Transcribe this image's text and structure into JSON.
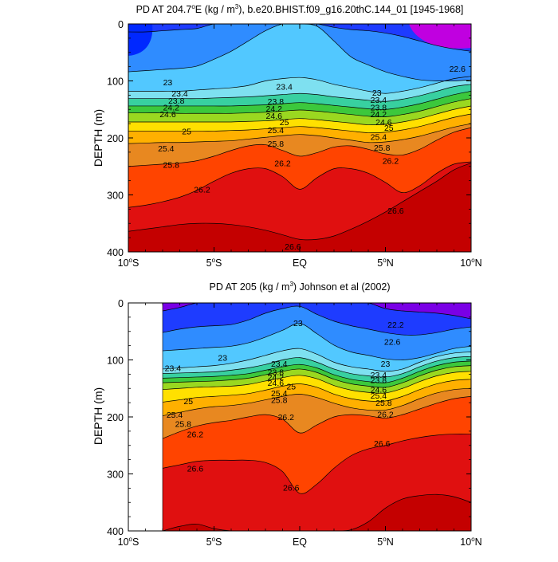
{
  "chart_data": [
    {
      "type": "contour",
      "title": "PD AT 204.7°E (kg / m³), b.e20.BHIST.f09_g16.20thC.144_01 [1945-1968]",
      "title_parts": {
        "pre": "PD AT 204.7",
        "deg": "o",
        "mid": "E (kg / m",
        "cube": "3",
        "post": "), b.e20.BHIST.f09_g16.20thC.144_01 [1945-1968]"
      },
      "xlabel": "",
      "ylabel": "DEPTH (m)",
      "x_range": [
        -10,
        10
      ],
      "y_range": [
        0,
        400
      ],
      "y_inverted": true,
      "x_ticks": [
        {
          "value": -10,
          "num": "10",
          "deg": "o",
          "hem": "S"
        },
        {
          "value": -5,
          "num": "5",
          "deg": "o",
          "hem": "S"
        },
        {
          "value": 0,
          "num": "EQ",
          "deg": "",
          "hem": ""
        },
        {
          "value": 5,
          "num": "5",
          "deg": "o",
          "hem": "N"
        },
        {
          "value": 10,
          "num": "10",
          "deg": "o",
          "hem": "N"
        }
      ],
      "y_ticks": [
        "0",
        "100",
        "200",
        "300",
        "400"
      ],
      "y_tick_values": [
        0,
        100,
        200,
        300,
        400
      ],
      "data_x_range": [
        -10,
        10
      ],
      "isopycnals": [
        {
          "level": 22.6,
          "depth": [
            14,
            14,
            12,
            10,
            8,
            0,
            0,
            0,
            0,
            0,
            0,
            0,
            6,
            10,
            12,
            16,
            22,
            30,
            38,
            44,
            48
          ]
        },
        {
          "level": 23.0,
          "depth": [
            84,
            82,
            80,
            78,
            74,
            62,
            48,
            30,
            12,
            0,
            0,
            4,
            30,
            58,
            72,
            84,
            92,
            98,
            100,
            100,
            98
          ]
        },
        {
          "level": 23.4,
          "depth": [
            118,
            118,
            118,
            118,
            116,
            114,
            112,
            108,
            100,
            96,
            94,
            98,
            106,
            112,
            118,
            122,
            118,
            112,
            104,
            96,
            92
          ]
        },
        {
          "level": 23.8,
          "depth": [
            131,
            131,
            131,
            131,
            131,
            130,
            129,
            128,
            126,
            124,
            122,
            124,
            128,
            131,
            134,
            136,
            132,
            126,
            118,
            110,
            106
          ]
        },
        {
          "level": 24.2,
          "depth": [
            144,
            144,
            144,
            144,
            144,
            144,
            144,
            143,
            142,
            140,
            138,
            140,
            143,
            146,
            149,
            150,
            146,
            140,
            132,
            124,
            118
          ]
        },
        {
          "level": 24.6,
          "depth": [
            156,
            156,
            156,
            157,
            157,
            157,
            157,
            156,
            155,
            153,
            151,
            153,
            156,
            159,
            162,
            163,
            159,
            153,
            145,
            137,
            131
          ]
        },
        {
          "level": 25.0,
          "depth": [
            172,
            172,
            172,
            172,
            172,
            172,
            172,
            171,
            170,
            168,
            166,
            168,
            171,
            174,
            177,
            176,
            172,
            166,
            158,
            150,
            144
          ]
        },
        {
          "level": 25.4,
          "depth": [
            188,
            188,
            188,
            188,
            188,
            188,
            187,
            186,
            184,
            182,
            180,
            182,
            185,
            188,
            191,
            190,
            186,
            180,
            172,
            164,
            158
          ]
        },
        {
          "level": 25.8,
          "depth": [
            210,
            209,
            208,
            208,
            207,
            206,
            205,
            202,
            199,
            196,
            194,
            196,
            200,
            204,
            208,
            207,
            203,
            197,
            189,
            181,
            175
          ]
        },
        {
          "level": 26.2,
          "depth": [
            250,
            248,
            246,
            244,
            240,
            232,
            222,
            214,
            212,
            222,
            232,
            226,
            216,
            214,
            220,
            228,
            230,
            220,
            204,
            190,
            182
          ]
        },
        {
          "level": 26.6,
          "depth": [
            322,
            318,
            312,
            304,
            292,
            276,
            262,
            254,
            254,
            268,
            290,
            270,
            254,
            254,
            262,
            278,
            296,
            284,
            262,
            246,
            242
          ]
        },
        {
          "level": 27.0,
          "depth": [
            364,
            360,
            356,
            352,
            350,
            350,
            352,
            356,
            362,
            370,
            378,
            378,
            372,
            360,
            346,
            330,
            312,
            294,
            276,
            256,
            244
          ]
        }
      ],
      "line_labels": [
        {
          "text": "22.6",
          "x": 9.2,
          "y": 78
        },
        {
          "text": "23",
          "x": -7.7,
          "y": 102
        },
        {
          "text": "23.4",
          "x": -0.9,
          "y": 110
        },
        {
          "text": "23",
          "x": 4.5,
          "y": 120
        },
        {
          "text": "23.4",
          "x": -7.0,
          "y": 122
        },
        {
          "text": "23.4",
          "x": 4.6,
          "y": 133
        },
        {
          "text": "23.8",
          "x": -7.2,
          "y": 134
        },
        {
          "text": "23.8",
          "x": -1.4,
          "y": 136
        },
        {
          "text": "23.8",
          "x": 4.6,
          "y": 146
        },
        {
          "text": "24.2",
          "x": -7.5,
          "y": 146
        },
        {
          "text": "24.2",
          "x": -1.5,
          "y": 148
        },
        {
          "text": "24.2",
          "x": 4.6,
          "y": 158
        },
        {
          "text": "24.6",
          "x": -7.7,
          "y": 158
        },
        {
          "text": "24.6",
          "x": -1.5,
          "y": 161
        },
        {
          "text": "25",
          "x": -0.9,
          "y": 172
        },
        {
          "text": "24.6",
          "x": 4.9,
          "y": 172
        },
        {
          "text": "25",
          "x": 5.2,
          "y": 182
        },
        {
          "text": "25",
          "x": -6.6,
          "y": 188
        },
        {
          "text": "25.4",
          "x": -1.4,
          "y": 186
        },
        {
          "text": "25.4",
          "x": 4.6,
          "y": 198
        },
        {
          "text": "25.8",
          "x": -1.4,
          "y": 210
        },
        {
          "text": "25.4",
          "x": -7.8,
          "y": 218
        },
        {
          "text": "25.8",
          "x": 4.8,
          "y": 217
        },
        {
          "text": "26.2",
          "x": -1.0,
          "y": 244
        },
        {
          "text": "25.8",
          "x": -7.5,
          "y": 247
        },
        {
          "text": "26.2",
          "x": 5.3,
          "y": 240
        },
        {
          "text": "26.2",
          "x": -5.7,
          "y": 290
        },
        {
          "text": "26.6",
          "x": 5.6,
          "y": 327
        },
        {
          "text": "26.6",
          "x": -0.4,
          "y": 390
        }
      ]
    },
    {
      "type": "contour",
      "title": "PD AT 205 (kg / m³) Johnson et al (2002)",
      "title_parts": {
        "pre": "PD AT 205 (kg / m",
        "cube": "3",
        "post": ") Johnson et al (2002)"
      },
      "xlabel": "",
      "ylabel": "DEPTH (m)",
      "x_range": [
        -10,
        10
      ],
      "y_range": [
        0,
        400
      ],
      "y_inverted": true,
      "x_ticks": [
        {
          "value": -10,
          "num": "10",
          "deg": "o",
          "hem": "S"
        },
        {
          "value": -5,
          "num": "5",
          "deg": "o",
          "hem": "S"
        },
        {
          "value": 0,
          "num": "EQ",
          "deg": "",
          "hem": ""
        },
        {
          "value": 5,
          "num": "5",
          "deg": "o",
          "hem": "N"
        },
        {
          "value": 10,
          "num": "10",
          "deg": "o",
          "hem": "N"
        }
      ],
      "y_ticks": [
        "0",
        "100",
        "200",
        "300",
        "400"
      ],
      "y_tick_values": [
        0,
        100,
        200,
        300,
        400
      ],
      "data_x_range": [
        -8,
        10
      ],
      "isopycnals": [
        {
          "level": 22.2,
          "depth": [
            null,
            null,
            14,
            8,
            0,
            0,
            0,
            0,
            0,
            0,
            0,
            0,
            0,
            0,
            0,
            10,
            14,
            16,
            18,
            22,
            28
          ]
        },
        {
          "level": 22.6,
          "depth": [
            null,
            null,
            52,
            46,
            42,
            40,
            38,
            30,
            18,
            10,
            6,
            20,
            32,
            40,
            46,
            52,
            56,
            56,
            52,
            46,
            42
          ]
        },
        {
          "level": 23.0,
          "depth": [
            null,
            null,
            84,
            82,
            80,
            78,
            76,
            70,
            60,
            48,
            36,
            54,
            74,
            86,
            92,
            98,
            100,
            96,
            88,
            80,
            76
          ]
        },
        {
          "level": 23.4,
          "depth": [
            null,
            null,
            116,
            114,
            112,
            110,
            106,
            100,
            92,
            84,
            80,
            90,
            104,
            112,
            116,
            120,
            116,
            104,
            94,
            88,
            86
          ]
        },
        {
          "level": 23.8,
          "depth": [
            null,
            null,
            124,
            123,
            122,
            121,
            118,
            114,
            108,
            100,
            96,
            104,
            116,
            124,
            128,
            130,
            124,
            112,
            102,
            96,
            94
          ]
        },
        {
          "level": 24.2,
          "depth": [
            null,
            null,
            132,
            131,
            130,
            129,
            127,
            124,
            118,
            112,
            108,
            114,
            126,
            134,
            138,
            140,
            132,
            120,
            110,
            104,
            102
          ]
        },
        {
          "level": 24.6,
          "depth": [
            null,
            null,
            140,
            139,
            138,
            137,
            135,
            132,
            126,
            120,
            116,
            122,
            134,
            142,
            146,
            148,
            140,
            128,
            118,
            112,
            110
          ]
        },
        {
          "level": 25.0,
          "depth": [
            null,
            null,
            152,
            150,
            148,
            147,
            146,
            143,
            137,
            131,
            127,
            133,
            145,
            153,
            157,
            158,
            150,
            138,
            128,
            122,
            120
          ]
        },
        {
          "level": 25.4,
          "depth": [
            null,
            null,
            174,
            170,
            166,
            164,
            162,
            159,
            153,
            146,
            142,
            148,
            160,
            168,
            172,
            172,
            164,
            152,
            142,
            136,
            134
          ]
        },
        {
          "level": 25.8,
          "depth": [
            null,
            null,
            198,
            192,
            186,
            182,
            180,
            176,
            170,
            164,
            160,
            166,
            176,
            184,
            188,
            188,
            180,
            168,
            158,
            152,
            150
          ]
        },
        {
          "level": 26.2,
          "depth": [
            null,
            null,
            238,
            226,
            216,
            210,
            206,
            200,
            196,
            204,
            228,
            214,
            200,
            196,
            198,
            202,
            196,
            186,
            176,
            168,
            164
          ]
        },
        {
          "level": 26.6,
          "depth": [
            null,
            null,
            290,
            284,
            278,
            276,
            276,
            276,
            280,
            296,
            334,
            318,
            290,
            268,
            256,
            250,
            242,
            236,
            232,
            230,
            230
          ]
        },
        {
          "level": 27.0,
          "depth": [
            null,
            null,
            400,
            392,
            388,
            396,
            400,
            400,
            400,
            400,
            400,
            400,
            400,
            398,
            384,
            360,
            344,
            338,
            336,
            340,
            350
          ]
        }
      ],
      "line_labels": [
        {
          "text": "23",
          "x": -0.1,
          "y": 35
        },
        {
          "text": "22.2",
          "x": 5.6,
          "y": 38
        },
        {
          "text": "22.6",
          "x": 5.4,
          "y": 68
        },
        {
          "text": "23",
          "x": -4.5,
          "y": 96
        },
        {
          "text": "23.4",
          "x": -1.2,
          "y": 106
        },
        {
          "text": "23",
          "x": 5.0,
          "y": 106
        },
        {
          "text": "23.4",
          "x": -7.4,
          "y": 114
        },
        {
          "text": "23.8",
          "x": -1.4,
          "y": 121
        },
        {
          "text": "23.4",
          "x": 4.6,
          "y": 126
        },
        {
          "text": "24.2",
          "x": -1.4,
          "y": 130
        },
        {
          "text": "23.8",
          "x": 4.6,
          "y": 135
        },
        {
          "text": "24.6",
          "x": -1.4,
          "y": 140
        },
        {
          "text": "24.6",
          "x": 4.6,
          "y": 152
        },
        {
          "text": "25",
          "x": -0.5,
          "y": 146
        },
        {
          "text": "25.4",
          "x": -1.2,
          "y": 158
        },
        {
          "text": "25.4",
          "x": 4.6,
          "y": 162
        },
        {
          "text": "25.8",
          "x": -1.2,
          "y": 170
        },
        {
          "text": "25",
          "x": -6.5,
          "y": 172
        },
        {
          "text": "25.8",
          "x": 4.9,
          "y": 175
        },
        {
          "text": "26.2",
          "x": -0.8,
          "y": 200
        },
        {
          "text": "26.2",
          "x": 5.0,
          "y": 195
        },
        {
          "text": "25.4",
          "x": -7.3,
          "y": 196
        },
        {
          "text": "25.8",
          "x": -6.8,
          "y": 212
        },
        {
          "text": "26.2",
          "x": -6.1,
          "y": 230
        },
        {
          "text": "26.6",
          "x": 4.8,
          "y": 246
        },
        {
          "text": "26.6",
          "x": -6.1,
          "y": 290
        },
        {
          "text": "26.6",
          "x": -0.5,
          "y": 324
        }
      ]
    }
  ],
  "colors": {
    "22.2": "#7a00e6",
    "22.6": "#1e3cff",
    "23.0": "#2f8cff",
    "23.4": "#52c8ff",
    "23.8": "#7ee0f0",
    "24.2": "#38d0a0",
    "24.6": "#3cc83c",
    "25.0": "#9ad820",
    "25.4": "#ffe000",
    "25.8": "#ffb000",
    "26.2": "#e88820",
    "26.6": "#ff4400",
    "27.0": "#e01010",
    "deep": "#c40000",
    "top_left": "#0028ff",
    "top_right": "#c000e0",
    "land": "#ffffff",
    "axis": "#000000"
  }
}
